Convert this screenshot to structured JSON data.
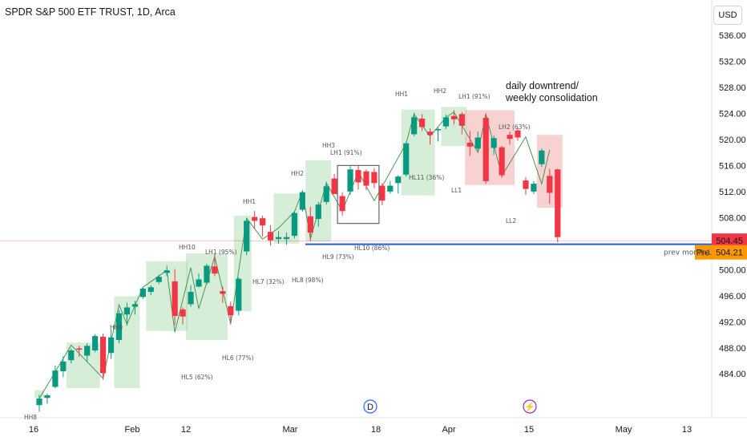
{
  "header": {
    "title": "SPDR S&P 500 ETF TRUST, 1D, Arca",
    "currency_button": "USD"
  },
  "chart_data": {
    "type": "candlestick",
    "ylim": [
      480.5,
      538.5
    ],
    "y_ticks": [
      484,
      488,
      492,
      496,
      500,
      504,
      508,
      512,
      516,
      520,
      524,
      528,
      532,
      536
    ],
    "x_ticks": [
      {
        "label": "16",
        "date": "2024-01-16"
      },
      {
        "label": "Feb",
        "date": "2024-02-01"
      },
      {
        "label": "12",
        "date": "2024-02-12"
      },
      {
        "label": "Mar",
        "date": "2024-03-01"
      },
      {
        "label": "18",
        "date": "2024-03-18"
      },
      {
        "label": "Apr",
        "date": "2024-04-01"
      },
      {
        "label": "15",
        "date": "2024-04-15"
      },
      {
        "label": "May",
        "date": "2024-05-01"
      },
      {
        "label": "13",
        "date": "2024-05-13"
      }
    ],
    "colors": {
      "up": "#089981",
      "down": "#f23645",
      "box_green": "#a5d6a7",
      "box_red": "#ef9a9a",
      "level_line": "#1e5cd1",
      "arrow": "#3d8b4a"
    },
    "candles": [
      {
        "o": 479.2,
        "h": 480.8,
        "l": 478.2,
        "c": 480.2
      },
      {
        "o": 480.3,
        "h": 481.0,
        "l": 479.4,
        "c": 480.7
      },
      {
        "o": 482.0,
        "h": 485.3,
        "l": 481.8,
        "c": 484.5
      },
      {
        "o": 484.4,
        "h": 486.7,
        "l": 483.5,
        "c": 485.9
      },
      {
        "o": 486.1,
        "h": 487.9,
        "l": 485.6,
        "c": 487.6
      },
      {
        "o": 487.9,
        "h": 488.3,
        "l": 486.6,
        "c": 487.7
      },
      {
        "o": 486.8,
        "h": 488.7,
        "l": 485.9,
        "c": 488.3
      },
      {
        "o": 487.6,
        "h": 490.1,
        "l": 487.3,
        "c": 489.8
      },
      {
        "o": 489.7,
        "h": 490.2,
        "l": 483.1,
        "c": 484.1
      },
      {
        "o": 487.2,
        "h": 490.8,
        "l": 486.3,
        "c": 489.6
      },
      {
        "o": 489.2,
        "h": 493.8,
        "l": 488.7,
        "c": 493.3
      },
      {
        "o": 493.1,
        "h": 494.9,
        "l": 491.4,
        "c": 494.2
      },
      {
        "o": 494.3,
        "h": 495.2,
        "l": 493.1,
        "c": 494.7
      },
      {
        "o": 495.8,
        "h": 497.4,
        "l": 495.5,
        "c": 497.1
      },
      {
        "o": 496.6,
        "h": 497.6,
        "l": 496.1,
        "c": 497.3
      },
      {
        "o": 498.1,
        "h": 499.2,
        "l": 497.8,
        "c": 498.9
      },
      {
        "o": 499.5,
        "h": 500.6,
        "l": 499.0,
        "c": 499.9
      },
      {
        "o": 498.2,
        "h": 500.1,
        "l": 491.5,
        "c": 492.9
      },
      {
        "o": 493.9,
        "h": 494.2,
        "l": 491.6,
        "c": 492.8
      },
      {
        "o": 494.7,
        "h": 497.6,
        "l": 494.3,
        "c": 496.6
      },
      {
        "o": 497.4,
        "h": 499.4,
        "l": 497.3,
        "c": 498.5
      },
      {
        "o": 498.0,
        "h": 500.9,
        "l": 497.7,
        "c": 500.6
      },
      {
        "o": 500.5,
        "h": 502.4,
        "l": 499.0,
        "c": 499.4
      },
      {
        "o": 496.7,
        "h": 497.4,
        "l": 494.9,
        "c": 496.3
      },
      {
        "o": 494.4,
        "h": 495.1,
        "l": 491.6,
        "c": 493.0
      },
      {
        "o": 493.7,
        "h": 498.8,
        "l": 493.0,
        "c": 498.6
      },
      {
        "o": 502.8,
        "h": 507.9,
        "l": 502.2,
        "c": 507.5
      },
      {
        "o": 508.1,
        "h": 509.0,
        "l": 506.3,
        "c": 507.5
      },
      {
        "o": 507.9,
        "h": 508.3,
        "l": 505.1,
        "c": 506.8
      },
      {
        "o": 505.8,
        "h": 506.8,
        "l": 503.7,
        "c": 504.5
      },
      {
        "o": 504.7,
        "h": 505.9,
        "l": 504.0,
        "c": 505.0
      },
      {
        "o": 504.7,
        "h": 505.7,
        "l": 503.8,
        "c": 505.0
      },
      {
        "o": 505.2,
        "h": 508.9,
        "l": 504.8,
        "c": 508.7
      },
      {
        "o": 509.2,
        "h": 512.2,
        "l": 508.9,
        "c": 511.9
      },
      {
        "o": 508.2,
        "h": 509.7,
        "l": 504.4,
        "c": 505.7
      },
      {
        "o": 507.8,
        "h": 510.4,
        "l": 506.6,
        "c": 510.0
      },
      {
        "o": 510.4,
        "h": 513.5,
        "l": 510.0,
        "c": 512.8
      },
      {
        "o": 514.0,
        "h": 514.7,
        "l": 511.7,
        "c": 511.6
      },
      {
        "o": 511.3,
        "h": 511.9,
        "l": 508.3,
        "c": 509.0
      },
      {
        "o": 512.0,
        "h": 515.9,
        "l": 511.5,
        "c": 515.4
      },
      {
        "o": 515.3,
        "h": 516.1,
        "l": 512.3,
        "c": 513.4
      },
      {
        "o": 515.1,
        "h": 515.4,
        "l": 512.2,
        "c": 512.9
      },
      {
        "o": 515.0,
        "h": 515.6,
        "l": 512.5,
        "c": 513.3
      },
      {
        "o": 512.9,
        "h": 513.3,
        "l": 509.9,
        "c": 510.6
      },
      {
        "o": 512.0,
        "h": 513.6,
        "l": 511.7,
        "c": 512.9
      },
      {
        "o": 513.3,
        "h": 514.5,
        "l": 511.7,
        "c": 514.3
      },
      {
        "o": 514.6,
        "h": 519.6,
        "l": 514.3,
        "c": 519.4
      },
      {
        "o": 520.8,
        "h": 524.1,
        "l": 520.5,
        "c": 523.4
      },
      {
        "o": 523.2,
        "h": 523.9,
        "l": 521.3,
        "c": 521.9
      },
      {
        "o": 521.2,
        "h": 521.7,
        "l": 519.2,
        "c": 520.7
      },
      {
        "o": 521.4,
        "h": 521.8,
        "l": 519.7,
        "c": 521.6
      },
      {
        "o": 522.0,
        "h": 523.8,
        "l": 521.6,
        "c": 523.4
      },
      {
        "o": 523.6,
        "h": 524.5,
        "l": 522.3,
        "c": 523.1
      },
      {
        "o": 523.9,
        "h": 524.2,
        "l": 520.8,
        "c": 522.1
      },
      {
        "o": 519.5,
        "h": 521.3,
        "l": 517.5,
        "c": 518.9
      },
      {
        "o": 518.6,
        "h": 521.2,
        "l": 518.3,
        "c": 520.3
      },
      {
        "o": 523.3,
        "h": 524.0,
        "l": 513.2,
        "c": 513.6
      },
      {
        "o": 518.7,
        "h": 520.6,
        "l": 517.6,
        "c": 520.2
      },
      {
        "o": 518.8,
        "h": 519.0,
        "l": 514.1,
        "c": 514.5
      },
      {
        "o": 520.7,
        "h": 521.2,
        "l": 519.2,
        "c": 520.1
      },
      {
        "o": 521.4,
        "h": 521.9,
        "l": 519.8,
        "c": 520.3
      },
      {
        "o": 513.7,
        "h": 514.2,
        "l": 511.5,
        "c": 512.4
      },
      {
        "o": 512.0,
        "h": 513.6,
        "l": 511.6,
        "c": 513.2
      },
      {
        "o": 516.2,
        "h": 518.6,
        "l": 515.8,
        "c": 518.3
      },
      {
        "o": 514.4,
        "h": 515.5,
        "l": 510.1,
        "c": 511.8
      },
      {
        "o": 515.4,
        "h": 515.5,
        "l": 504.2,
        "c": 505.0
      }
    ],
    "current_price": "504.45",
    "pre_label": "Pre",
    "pre_price": "504.21",
    "level_label": "prev month L",
    "note_line1": "daily downtrend/",
    "note_line2": "weekly consolidation",
    "annotations": [
      "HH8",
      "HH9",
      "HH10",
      "LH1 (95%)",
      "HH1",
      "HH2",
      "HH3",
      "LH1 (91%)",
      "HH1",
      "HH2",
      "LH1 (91%)",
      "LH2 (63%)",
      "HL5 (62%)",
      "HL6 (77%)",
      "HL7 (32%)",
      "HL8 (98%)",
      "HL9 (73%)",
      "HL10 (86%)",
      "HL11 (36%)",
      "LL1",
      "LL2"
    ],
    "event_icons": {
      "dividend": "D",
      "earnings": "⚡"
    }
  }
}
